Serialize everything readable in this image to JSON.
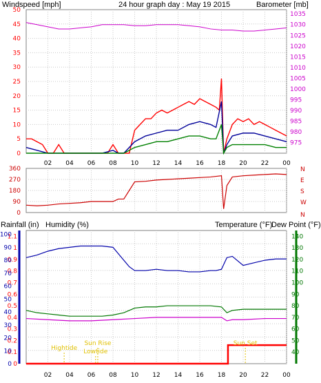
{
  "header": {
    "windspeed_label": "Windspeed [mph]",
    "title": "24 hour graph day : May 19 2015",
    "barometer_label": "Barometer [mb]"
  },
  "labels": {
    "rainfall": "Rainfall (in)",
    "humidity": "Humidity (%)",
    "temperature": "Temperature (°F)",
    "dewpoint": "Dew Point (°F)"
  },
  "annotations": {
    "high_tide": "Hightide",
    "sun_rise": "Sun Rise",
    "low_tide": "Lowtide",
    "sun_set": "Sun Set"
  },
  "colors": {
    "wind": "#ff0000",
    "avg_wind": "#000099",
    "wind_low": "#008000",
    "barometer": "#cc00cc",
    "direction": "#cc0000",
    "humidity": "#0000aa",
    "temperature": "#007700",
    "dewpoint": "#cc00cc",
    "rain": "#ff0000",
    "annotation": "#e0c000",
    "left_axis_rain": "#ff0000",
    "left_axis_humidity": "#0000aa",
    "right_axis_temp": "#007700"
  },
  "chart_data": [
    {
      "type": "line",
      "xlabel": "",
      "x_ticks": [
        "02",
        "04",
        "06",
        "08",
        "10",
        "12",
        "14",
        "16",
        "18",
        "20",
        "22",
        "00"
      ],
      "y_left": {
        "label": "Windspeed [mph]",
        "ticks": [
          0,
          5,
          10,
          15,
          20,
          25,
          30,
          35,
          40,
          45,
          50
        ],
        "lim": [
          0,
          50
        ]
      },
      "y_right": {
        "label": "Barometer [mb]",
        "ticks": [
          975,
          980,
          985,
          990,
          995,
          1000,
          1005,
          1010,
          1015,
          1020,
          1025,
          1030,
          1035
        ],
        "lim": [
          970,
          1037
        ]
      },
      "series": [
        {
          "name": "Barometer",
          "axis": "right",
          "x": [
            0,
            1,
            2,
            3,
            4,
            5,
            6,
            7,
            8,
            9,
            10,
            11,
            12,
            13,
            14,
            15,
            16,
            17,
            18,
            19,
            20,
            21,
            22,
            23,
            24
          ],
          "y": [
            1031,
            1030,
            1029,
            1028,
            1028,
            1028.5,
            1029,
            1030,
            1030,
            1030,
            1029.5,
            1029.5,
            1030,
            1030,
            1030,
            1029.5,
            1029,
            1028,
            1027.5,
            1027.5,
            1027,
            1027,
            1027.5,
            1028,
            1028.5
          ]
        },
        {
          "name": "Wind gust",
          "axis": "left",
          "x": [
            0,
            0.5,
            1,
            1.5,
            2,
            2.5,
            3,
            3.5,
            4,
            4.5,
            5,
            5.5,
            6,
            6.5,
            7,
            7.5,
            8,
            8.5,
            9,
            9.5,
            10,
            10.5,
            11,
            11.5,
            12,
            12.5,
            13,
            13.5,
            14,
            14.5,
            15,
            15.5,
            16,
            16.5,
            17,
            17.5,
            17.8,
            18,
            18.2,
            18.5,
            19,
            19.5,
            20,
            20.5,
            21,
            21.5,
            22,
            22.5,
            23,
            23.5,
            24
          ],
          "y": [
            5,
            5,
            4,
            3,
            0,
            0,
            3,
            0,
            0,
            0,
            0,
            0,
            0,
            0,
            0,
            0,
            3,
            0,
            0,
            0,
            8,
            10,
            12,
            12,
            14,
            15,
            14,
            15,
            16,
            17,
            18,
            17,
            19,
            18,
            17,
            16,
            15,
            26,
            0,
            5,
            10,
            12,
            11,
            12,
            10,
            11,
            10,
            9,
            8,
            7,
            6
          ]
        },
        {
          "name": "Wind average",
          "axis": "left",
          "x": [
            0,
            1,
            2,
            3,
            4,
            5,
            6,
            7,
            8,
            8.5,
            9,
            10,
            11,
            12,
            13,
            14,
            15,
            16,
            17,
            17.5,
            18,
            18.2,
            18.5,
            19,
            20,
            21,
            22,
            23,
            24
          ],
          "y": [
            2,
            1,
            0,
            0,
            0,
            0,
            0,
            0,
            1,
            0,
            0,
            4,
            6,
            7,
            8,
            8,
            10,
            11,
            10,
            9,
            18,
            0,
            3,
            6,
            7,
            7,
            6,
            5,
            4
          ]
        },
        {
          "name": "Wind low",
          "axis": "left",
          "x": [
            0,
            4,
            8,
            9,
            10,
            11,
            12,
            13,
            14,
            15,
            16,
            17,
            17.5,
            18,
            18.2,
            18.5,
            19,
            20,
            21,
            22,
            23,
            24
          ],
          "y": [
            0,
            0,
            0,
            0,
            2,
            3,
            4,
            4,
            5,
            6,
            6,
            5,
            5,
            10,
            0,
            2,
            3,
            3,
            3,
            3,
            2,
            2
          ]
        }
      ]
    },
    {
      "type": "line",
      "y_left": {
        "ticks": [
          0,
          90,
          180,
          270,
          360
        ],
        "lim": [
          0,
          360
        ]
      },
      "y_right": {
        "ticks": [
          "N",
          "W",
          "S",
          "E",
          "N"
        ]
      },
      "series": [
        {
          "name": "Wind direction",
          "x": [
            0,
            1,
            2,
            3,
            4,
            5,
            6,
            6.5,
            7,
            8,
            8.5,
            9,
            9.5,
            10,
            11,
            12,
            13,
            14,
            15,
            16,
            17,
            17.5,
            18,
            18.2,
            18.5,
            19,
            20,
            21,
            22,
            23,
            24
          ],
          "y": [
            60,
            55,
            60,
            70,
            75,
            80,
            90,
            90,
            90,
            90,
            110,
            110,
            180,
            250,
            255,
            265,
            270,
            275,
            280,
            285,
            290,
            295,
            300,
            30,
            220,
            290,
            300,
            305,
            310,
            315,
            310
          ]
        }
      ]
    },
    {
      "type": "line",
      "x_ticks": [
        "02",
        "04",
        "06",
        "08",
        "10",
        "12",
        "14",
        "16",
        "18",
        "20",
        "22",
        "00"
      ],
      "y_rain": {
        "ticks": [
          "0",
          "0.1",
          "0.2",
          "0.3",
          "0.4",
          "0.5",
          "0.6",
          "0.7",
          "0.8",
          "0.9",
          "1",
          "1.1"
        ],
        "lim": [
          0,
          1.15
        ]
      },
      "y_humidity": {
        "ticks": [
          0,
          10,
          20,
          30,
          40,
          50,
          60,
          70,
          80,
          90,
          100
        ],
        "lim": [
          0,
          103
        ]
      },
      "y_temp": {
        "ticks": [
          40,
          50,
          60,
          70,
          80,
          90,
          100,
          110,
          120,
          130,
          140
        ],
        "lim": [
          30,
          145
        ]
      },
      "series": [
        {
          "name": "Humidity",
          "axis": "humidity",
          "x": [
            0,
            1,
            2,
            3,
            4,
            5,
            6,
            7,
            8,
            8.5,
            9,
            9.5,
            10,
            11,
            12,
            13,
            14,
            15,
            16,
            17,
            17.5,
            18,
            18.5,
            19,
            20,
            21,
            22,
            23,
            24
          ],
          "y": [
            82,
            84,
            87,
            89,
            90,
            91,
            91,
            91,
            90,
            85,
            80,
            75,
            72,
            72,
            73,
            72,
            72,
            71,
            71,
            72,
            72,
            73,
            82,
            83,
            76,
            78,
            80,
            81,
            81
          ]
        },
        {
          "name": "Temperature",
          "axis": "temp",
          "x": [
            0,
            1,
            2,
            3,
            4,
            5,
            6,
            7,
            8,
            9,
            10,
            11,
            12,
            13,
            14,
            15,
            16,
            17,
            18,
            18.5,
            19,
            20,
            21,
            22,
            23,
            24
          ],
          "y": [
            76,
            74,
            73,
            72,
            71,
            71,
            71,
            71,
            72,
            74,
            78,
            79,
            79,
            80,
            80,
            80,
            80,
            80,
            79,
            74,
            76,
            77,
            77,
            77,
            77,
            77
          ]
        },
        {
          "name": "Dew point",
          "axis": "temp",
          "x": [
            0,
            2,
            4,
            6,
            8,
            10,
            12,
            14,
            16,
            17,
            18,
            18.5,
            19,
            20,
            22,
            24
          ],
          "y": [
            69,
            68,
            67,
            67,
            68,
            69,
            70,
            70,
            70,
            70,
            70,
            67,
            68,
            68,
            69,
            69
          ]
        },
        {
          "name": "Rainfall",
          "axis": "rain",
          "x": [
            0,
            18.5,
            18.6,
            24
          ],
          "y": [
            0,
            0,
            0.16,
            0.16
          ]
        }
      ]
    }
  ]
}
